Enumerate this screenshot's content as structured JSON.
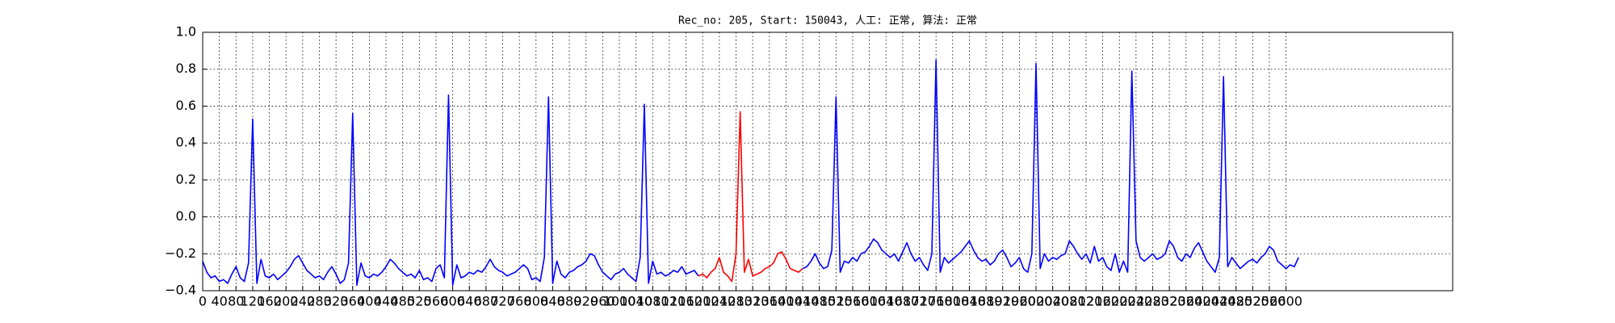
{
  "chart_data": {
    "type": "line",
    "title": "Rec_no: 205, Start: 150043, 人工: 正常, 算法: 正常",
    "x": [
      0,
      10,
      20,
      30,
      40,
      50,
      60,
      70,
      80,
      90,
      100,
      110,
      120,
      130,
      140,
      150,
      160,
      170,
      180,
      190,
      200,
      210,
      220,
      230,
      240,
      250,
      260,
      270,
      280,
      290,
      300,
      310,
      320,
      330,
      340,
      350,
      360,
      370,
      380,
      390,
      400,
      410,
      420,
      430,
      440,
      450,
      460,
      470,
      480,
      490,
      500,
      510,
      520,
      530,
      540,
      550,
      560,
      570,
      580,
      590,
      600,
      610,
      620,
      630,
      640,
      650,
      660,
      670,
      680,
      690,
      700,
      710,
      720,
      730,
      740,
      750,
      760,
      770,
      780,
      790,
      800,
      810,
      820,
      830,
      840,
      850,
      860,
      870,
      880,
      890,
      900,
      910,
      920,
      930,
      940,
      950,
      960,
      970,
      980,
      990,
      1000,
      1010,
      1020,
      1030,
      1040,
      1050,
      1060,
      1070,
      1080,
      1090,
      1100,
      1110,
      1120,
      1130,
      1140,
      1150,
      1160,
      1170,
      1180,
      1190,
      1200,
      1210,
      1220,
      1230,
      1240,
      1250,
      1260,
      1270,
      1280,
      1290,
      1300,
      1310,
      1320,
      1330,
      1340,
      1350,
      1360,
      1370,
      1380,
      1390,
      1400,
      1410,
      1420,
      1430,
      1440,
      1450,
      1460,
      1470,
      1480,
      1490,
      1500,
      1510,
      1520,
      1530,
      1540,
      1550,
      1560,
      1570,
      1580,
      1590,
      1600,
      1610,
      1620,
      1630,
      1640,
      1650,
      1660,
      1670,
      1680,
      1690,
      1700,
      1710,
      1720,
      1730,
      1740,
      1750,
      1760,
      1770,
      1780,
      1790,
      1800,
      1810,
      1820,
      1830,
      1840,
      1850,
      1860,
      1870,
      1880,
      1890,
      1900,
      1910,
      1920,
      1930,
      1940,
      1950,
      1960,
      1970,
      1980,
      1990,
      2000,
      2010,
      2020,
      2030,
      2040,
      2050,
      2060,
      2070,
      2080,
      2090,
      2100,
      2110,
      2120,
      2130,
      2140,
      2150,
      2160,
      2170,
      2180,
      2190,
      2200,
      2210,
      2220,
      2230,
      2240,
      2250,
      2260,
      2270,
      2280,
      2290,
      2300,
      2310,
      2320,
      2330,
      2340,
      2350,
      2360,
      2370,
      2380,
      2390,
      2400,
      2410,
      2420,
      2430,
      2440,
      2450,
      2460,
      2470,
      2480,
      2490,
      2500,
      2510,
      2520,
      2530,
      2540,
      2550,
      2560,
      2570,
      2580,
      2590,
      2600,
      2610,
      2620,
      2630
    ],
    "series": [
      {
        "color": "#0000ff",
        "values": [
          -0.24,
          -0.3,
          -0.33,
          -0.32,
          -0.35,
          -0.34,
          -0.36,
          -0.31,
          -0.27,
          -0.33,
          -0.35,
          -0.25,
          0.53,
          -0.36,
          -0.23,
          -0.32,
          -0.33,
          -0.31,
          -0.34,
          -0.32,
          -0.3,
          -0.27,
          -0.23,
          -0.21,
          -0.25,
          -0.29,
          -0.31,
          -0.33,
          -0.32,
          -0.34,
          -0.3,
          -0.27,
          -0.31,
          -0.36,
          -0.34,
          -0.25,
          0.56,
          -0.37,
          -0.25,
          -0.32,
          -0.33,
          -0.31,
          -0.32,
          -0.3,
          -0.27,
          -0.23,
          -0.25,
          -0.28,
          -0.3,
          -0.32,
          -0.31,
          -0.33,
          -0.29,
          -0.34,
          -0.33,
          -0.35,
          -0.28,
          -0.26,
          -0.33,
          0.66,
          -0.37,
          -0.26,
          -0.33,
          -0.32,
          -0.3,
          -0.31,
          -0.29,
          -0.3,
          -0.27,
          -0.23,
          -0.27,
          -0.29,
          -0.3,
          -0.32,
          -0.31,
          -0.3,
          -0.28,
          -0.26,
          -0.28,
          -0.34,
          -0.33,
          -0.35,
          -0.22,
          0.65,
          -0.36,
          -0.24,
          -0.31,
          -0.33,
          -0.3,
          -0.29,
          -0.27,
          -0.26,
          -0.24,
          -0.2,
          -0.21,
          -0.26,
          -0.3,
          -0.32,
          -0.34,
          -0.31,
          -0.3,
          -0.28,
          -0.31,
          -0.33,
          -0.35,
          -0.22,
          0.61,
          -0.36,
          -0.24,
          -0.31,
          -0.3,
          -0.32,
          -0.31,
          -0.29,
          -0.3,
          -0.27,
          -0.31,
          -0.3,
          -0.29,
          -0.32,
          null,
          null,
          null,
          null,
          null,
          null,
          null,
          null,
          null,
          null,
          null,
          null,
          null,
          null,
          null,
          null,
          null,
          null,
          null,
          null,
          null,
          null,
          null,
          null,
          -0.28,
          -0.27,
          -0.24,
          -0.2,
          -0.25,
          -0.28,
          -0.27,
          -0.18,
          0.65,
          -0.3,
          -0.24,
          -0.25,
          -0.22,
          -0.24,
          -0.2,
          -0.19,
          -0.16,
          -0.12,
          -0.14,
          -0.18,
          -0.2,
          -0.22,
          -0.2,
          -0.24,
          -0.19,
          -0.14,
          -0.2,
          -0.24,
          -0.22,
          -0.26,
          -0.29,
          -0.2,
          0.85,
          -0.3,
          -0.22,
          -0.25,
          -0.23,
          -0.21,
          -0.19,
          -0.16,
          -0.13,
          -0.18,
          -0.22,
          -0.24,
          -0.23,
          -0.26,
          -0.24,
          -0.2,
          -0.18,
          -0.22,
          -0.27,
          -0.25,
          -0.22,
          -0.28,
          -0.3,
          -0.2,
          0.83,
          -0.28,
          -0.2,
          -0.24,
          -0.22,
          -0.23,
          -0.21,
          -0.2,
          -0.13,
          -0.16,
          -0.2,
          -0.23,
          -0.2,
          -0.25,
          -0.16,
          -0.24,
          -0.22,
          -0.27,
          -0.29,
          -0.2,
          -0.3,
          -0.24,
          -0.3,
          0.79,
          -0.13,
          -0.22,
          -0.24,
          -0.22,
          -0.2,
          -0.23,
          -0.22,
          -0.2,
          -0.13,
          -0.16,
          -0.22,
          -0.24,
          -0.2,
          -0.22,
          -0.17,
          -0.14,
          -0.19,
          -0.24,
          -0.27,
          -0.3,
          -0.22,
          0.76,
          -0.27,
          -0.22,
          -0.25,
          -0.28,
          -0.26,
          -0.24,
          -0.23,
          -0.25,
          -0.22,
          -0.2,
          -0.16,
          -0.18,
          -0.24,
          -0.26,
          -0.28,
          -0.26,
          -0.27,
          -0.22
        ]
      },
      {
        "color": "#ff0000",
        "values": [
          null,
          null,
          null,
          null,
          null,
          null,
          null,
          null,
          null,
          null,
          null,
          null,
          null,
          null,
          null,
          null,
          null,
          null,
          null,
          null,
          null,
          null,
          null,
          null,
          null,
          null,
          null,
          null,
          null,
          null,
          null,
          null,
          null,
          null,
          null,
          null,
          null,
          null,
          null,
          null,
          null,
          null,
          null,
          null,
          null,
          null,
          null,
          null,
          null,
          null,
          null,
          null,
          null,
          null,
          null,
          null,
          null,
          null,
          null,
          null,
          null,
          null,
          null,
          null,
          null,
          null,
          null,
          null,
          null,
          null,
          null,
          null,
          null,
          null,
          null,
          null,
          null,
          null,
          null,
          null,
          null,
          null,
          null,
          null,
          null,
          null,
          null,
          null,
          null,
          null,
          null,
          null,
          null,
          null,
          null,
          null,
          null,
          null,
          null,
          null,
          null,
          null,
          null,
          null,
          null,
          null,
          null,
          null,
          null,
          null,
          null,
          null,
          null,
          null,
          null,
          null,
          null,
          null,
          null,
          -0.32,
          -0.31,
          -0.33,
          -0.3,
          -0.28,
          -0.22,
          -0.3,
          -0.32,
          -0.35,
          -0.2,
          0.57,
          -0.3,
          -0.23,
          -0.32,
          -0.31,
          -0.3,
          -0.28,
          -0.27,
          -0.25,
          -0.2,
          -0.19,
          -0.23,
          -0.28,
          -0.29,
          -0.3,
          -0.28,
          null,
          null,
          null,
          null,
          null,
          null,
          null,
          null,
          null,
          null,
          null,
          null,
          null,
          null,
          null,
          null,
          null,
          null,
          null,
          null,
          null,
          null,
          null,
          null,
          null,
          null,
          null,
          null,
          null,
          null,
          null,
          null,
          null,
          null,
          null,
          null,
          null,
          null,
          null,
          null,
          null,
          null,
          null,
          null,
          null,
          null,
          null,
          null,
          null,
          null,
          null,
          null,
          null,
          null,
          null,
          null,
          null,
          null,
          null,
          null,
          null,
          null,
          null,
          null,
          null,
          null,
          null,
          null,
          null,
          null,
          null,
          null,
          null,
          null,
          null,
          null,
          null,
          null,
          null,
          null,
          null,
          null,
          null,
          null,
          null,
          null,
          null,
          null,
          null,
          null,
          null,
          null,
          null,
          null,
          null,
          null,
          null,
          null,
          null,
          null,
          null,
          null,
          null,
          null,
          null,
          null,
          null,
          null,
          null,
          null,
          null,
          null,
          null,
          null,
          null,
          null,
          null,
          null,
          null
        ]
      }
    ],
    "xlim": [
      0,
      3000
    ],
    "xticks": [
      0,
      40,
      80,
      120,
      160,
      200,
      240,
      280,
      320,
      360,
      400,
      440,
      480,
      520,
      560,
      600,
      640,
      680,
      720,
      760,
      800,
      840,
      880,
      920,
      960,
      1000,
      1040,
      1080,
      1120,
      1160,
      1200,
      1240,
      1280,
      1320,
      1360,
      1400,
      1440,
      1480,
      1520,
      1560,
      1600,
      1640,
      1680,
      1720,
      1760,
      1800,
      1840,
      1880,
      1920,
      1960,
      2000,
      2040,
      2080,
      2120,
      2160,
      2200,
      2240,
      2280,
      2320,
      2360,
      2400,
      2440,
      2480,
      2520,
      2560,
      2600
    ],
    "ylim": [
      -0.4,
      1.0
    ],
    "yticks": [
      {
        "value": -0.4,
        "label": "−0.4"
      },
      {
        "value": -0.2,
        "label": "−0.2"
      },
      {
        "value": 0,
        "label": "0.0"
      },
      0.2,
      0.4,
      0.6,
      0.8,
      {
        "value": 1,
        "label": "1.0"
      }
    ],
    "grid": true
  }
}
